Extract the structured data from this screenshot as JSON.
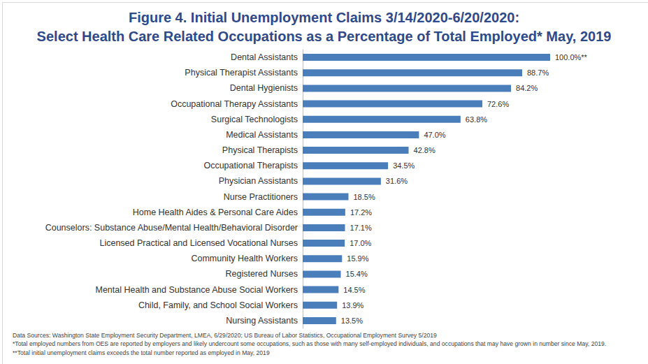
{
  "chart_data": {
    "type": "bar",
    "title": "Figure 4. Initial Unemployment Claims 3/14/2020-6/20/2020:",
    "subtitle": "Select Health Care Related Occupations as a Percentage of Total Employed* May, 2019",
    "orientation": "horizontal",
    "categories": [
      "Dental Assistants",
      "Physical Therapist Assistants",
      "Dental Hygienists",
      "Occupational Therapy Assistants",
      "Surgical Technologists",
      "Medical Assistants",
      "Physical Therapists",
      "Occupational Therapists",
      "Physician Assistants",
      "Nurse Practitioners",
      "Home Health Aides & Personal Care Aides",
      "Counselors: Substance Abuse/Mental Health/Behavioral Disorder",
      "Licensed Practical and Licensed Vocational Nurses",
      "Community Health Workers",
      "Registered Nurses",
      "Mental Health and Substance Abuse Social Workers",
      "Child, Family, and School Social Workers",
      "Nursing Assistants"
    ],
    "values": [
      100.0,
      88.7,
      84.2,
      72.6,
      63.8,
      47.0,
      42.8,
      34.5,
      31.6,
      18.5,
      17.2,
      17.1,
      17.0,
      15.9,
      15.4,
      14.5,
      13.9,
      13.5
    ],
    "value_labels": [
      "100.0%**",
      "88.7%",
      "84.2%",
      "72.6%",
      "63.8%",
      "47.0%",
      "42.8%",
      "34.5%",
      "31.6%",
      "18.5%",
      "17.2%",
      "17.1%",
      "17.0%",
      "15.9%",
      "15.4%",
      "14.5%",
      "13.9%",
      "13.5%"
    ],
    "color": "#4a7ebb",
    "xlim": [
      0,
      100
    ],
    "tick_labels": false,
    "grid": false,
    "data_labels": true,
    "notes": [
      "Data Sources: Washington State Employment Security Department, LMEA, 6/29/2020; US Bureau of Labor Statistics, Occupational Employment Survey 5/2019",
      "*Total employed numbers from OES are reported by employers and likely undercount some occupations, such as those with many self-employed individuals, and occupations that may have grown in number since May, 2019.",
      "**Total initial unemployment claims exceeds the total number reported as employed in May, 2019"
    ]
  }
}
